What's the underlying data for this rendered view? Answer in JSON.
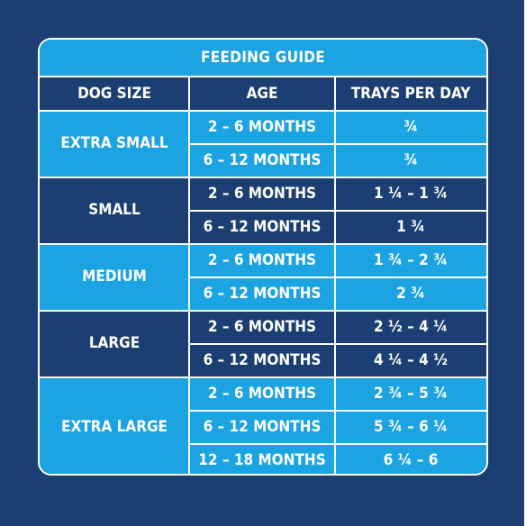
{
  "title": "FEEDING GUIDE",
  "headers": {
    "size": "DOG SIZE",
    "age": "AGE",
    "trays": "TRAYS PER DAY"
  },
  "groups": [
    {
      "size": "EXTRA SMALL",
      "rows": [
        {
          "age": "2 – 6 MONTHS",
          "trays": "¾"
        },
        {
          "age": "6 – 12 MONTHS",
          "trays": "¾"
        }
      ]
    },
    {
      "size": "SMALL",
      "rows": [
        {
          "age": "2 – 6 MONTHS",
          "trays": "1 ¼ – 1 ¾"
        },
        {
          "age": "6 – 12 MONTHS",
          "trays": "1 ¾"
        }
      ]
    },
    {
      "size": "MEDIUM",
      "rows": [
        {
          "age": "2 – 6 MONTHS",
          "trays": "1 ¾ – 2 ¾"
        },
        {
          "age": "6 – 12 MONTHS",
          "trays": "2 ¾"
        }
      ]
    },
    {
      "size": "LARGE",
      "rows": [
        {
          "age": "2 – 6 MONTHS",
          "trays": "2 ½ – 4 ¼"
        },
        {
          "age": "6 – 12 MONTHS",
          "trays": "4 ¼ – 4 ½"
        }
      ]
    },
    {
      "size": "EXTRA LARGE",
      "rows": [
        {
          "age": "2 – 6 MONTHS",
          "trays": "2 ¾ – 5 ¾"
        },
        {
          "age": "6 – 12 MONTHS",
          "trays": "5 ¾ – 6 ¼"
        },
        {
          "age": "12 – 18 MONTHS",
          "trays": "6 ¼ – 6"
        }
      ]
    }
  ]
}
